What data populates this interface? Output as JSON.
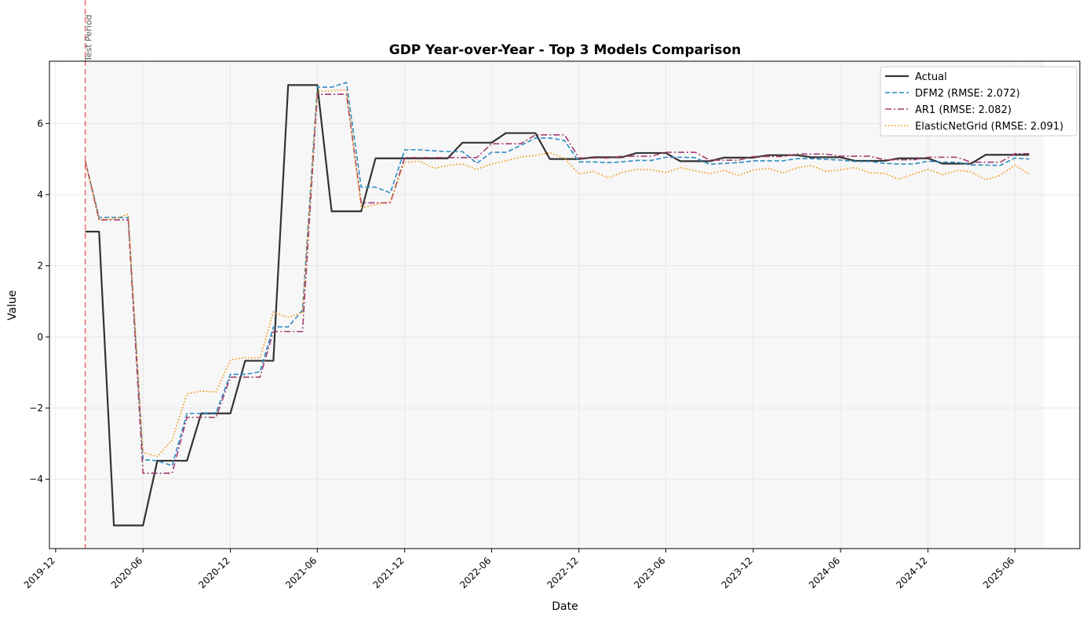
{
  "chart_data": {
    "type": "line",
    "title": "GDP Year-over-Year - Top 3 Models Comparison",
    "xlabel": "Date",
    "ylabel": "Value",
    "x_axis_type": "date",
    "xlim": [
      "2019-11-18",
      "2025-10-15"
    ],
    "ylim": [
      -5.95,
      7.75
    ],
    "x_ticks": [
      "2019-12",
      "2020-06",
      "2020-12",
      "2021-06",
      "2021-12",
      "2022-06",
      "2022-12",
      "2023-06",
      "2023-12",
      "2024-06",
      "2024-12",
      "2025-06"
    ],
    "y_ticks": [
      -4,
      -2,
      0,
      2,
      4,
      6
    ],
    "y_tick_labels": [
      "−4",
      "−2",
      "0",
      "2",
      "4",
      "6"
    ],
    "grid": true,
    "legend_position": "top-right",
    "test_period": {
      "start": "2020-02",
      "end": "2025-08",
      "label": "Test Period",
      "shade_color": "#f7f7f7",
      "line_color": "#f07070"
    },
    "x": [
      "2020-02",
      "2020-03",
      "2020-04",
      "2020-05",
      "2020-06",
      "2020-07",
      "2020-08",
      "2020-09",
      "2020-10",
      "2020-11",
      "2020-12",
      "2021-01",
      "2021-02",
      "2021-03",
      "2021-04",
      "2021-05",
      "2021-06",
      "2021-07",
      "2021-08",
      "2021-09",
      "2021-10",
      "2021-11",
      "2021-12",
      "2022-01",
      "2022-02",
      "2022-03",
      "2022-04",
      "2022-05",
      "2022-06",
      "2022-07",
      "2022-08",
      "2022-09",
      "2022-10",
      "2022-11",
      "2022-12",
      "2023-01",
      "2023-02",
      "2023-03",
      "2023-04",
      "2023-05",
      "2023-06",
      "2023-07",
      "2023-08",
      "2023-09",
      "2023-10",
      "2023-11",
      "2023-12",
      "2024-01",
      "2024-02",
      "2024-03",
      "2024-04",
      "2024-05",
      "2024-06",
      "2024-07",
      "2024-08",
      "2024-09",
      "2024-10",
      "2024-11",
      "2024-12",
      "2025-01",
      "2025-02",
      "2025-03",
      "2025-04",
      "2025-05",
      "2025-06",
      "2025-07"
    ],
    "series": [
      {
        "name": "Actual",
        "color": "#333333",
        "style": "solid",
        "values": [
          2.96,
          2.96,
          -5.3,
          -5.3,
          -5.3,
          -3.48,
          -3.48,
          -3.48,
          -2.15,
          -2.15,
          -2.15,
          -0.67,
          -0.67,
          -0.67,
          7.08,
          7.08,
          7.08,
          3.53,
          3.53,
          3.53,
          5.02,
          5.02,
          5.02,
          5.02,
          5.02,
          5.02,
          5.46,
          5.46,
          5.46,
          5.73,
          5.73,
          5.73,
          5.0,
          5.0,
          5.0,
          5.05,
          5.05,
          5.05,
          5.17,
          5.17,
          5.17,
          4.94,
          4.94,
          4.94,
          5.04,
          5.04,
          5.04,
          5.11,
          5.11,
          5.11,
          5.05,
          5.05,
          5.05,
          4.95,
          4.95,
          4.95,
          5.02,
          5.02,
          5.02,
          4.87,
          4.87,
          4.87,
          5.12,
          5.12,
          5.12,
          5.12
        ]
      },
      {
        "name": "DFM2 (RMSE: 2.072)",
        "color": "#2e8bc0",
        "style": "dashed",
        "values": [
          4.95,
          3.36,
          3.36,
          3.35,
          -3.45,
          -3.48,
          -3.62,
          -2.15,
          -2.15,
          -2.13,
          -1.05,
          -1.05,
          -0.98,
          0.28,
          0.28,
          0.75,
          7.02,
          7.02,
          7.15,
          4.21,
          4.21,
          4.05,
          5.26,
          5.26,
          5.23,
          5.21,
          5.21,
          4.88,
          5.19,
          5.19,
          5.38,
          5.59,
          5.59,
          5.52,
          4.92,
          4.92,
          4.9,
          4.92,
          4.96,
          4.96,
          5.05,
          5.05,
          5.04,
          4.85,
          4.88,
          4.9,
          4.95,
          4.95,
          4.95,
          5.01,
          5.01,
          4.99,
          4.97,
          4.93,
          4.93,
          4.88,
          4.86,
          4.86,
          4.94,
          4.91,
          4.91,
          4.83,
          4.83,
          4.82,
          5.03,
          5.0
        ]
      },
      {
        "name": "AR1 (RMSE: 2.082)",
        "color": "#a23b72",
        "style": "dashdot",
        "values": [
          4.95,
          3.29,
          3.29,
          3.29,
          -3.83,
          -3.83,
          -3.83,
          -2.26,
          -2.26,
          -2.26,
          -1.13,
          -1.13,
          -1.13,
          0.15,
          0.15,
          0.15,
          6.82,
          6.82,
          6.82,
          3.77,
          3.77,
          3.77,
          5.04,
          5.04,
          5.04,
          5.04,
          5.04,
          5.04,
          5.43,
          5.43,
          5.43,
          5.68,
          5.68,
          5.68,
          5.03,
          5.03,
          5.03,
          5.08,
          5.08,
          5.08,
          5.19,
          5.19,
          5.19,
          4.97,
          4.97,
          4.97,
          5.07,
          5.07,
          5.07,
          5.14,
          5.14,
          5.14,
          5.08,
          5.08,
          5.08,
          4.98,
          4.98,
          4.98,
          5.05,
          5.05,
          5.05,
          4.91,
          4.91,
          4.91,
          5.15,
          5.15
        ]
      },
      {
        "name": "ElasticNetGrid (RMSE: 2.091)",
        "color": "#f18f01",
        "style": "dotted",
        "values": [
          4.93,
          3.3,
          3.32,
          3.45,
          -3.25,
          -3.36,
          -2.9,
          -1.6,
          -1.52,
          -1.55,
          -0.65,
          -0.58,
          -0.6,
          0.7,
          0.55,
          0.68,
          6.9,
          6.92,
          6.95,
          3.62,
          3.72,
          3.8,
          4.91,
          4.94,
          4.74,
          4.82,
          4.86,
          4.71,
          4.86,
          4.95,
          5.06,
          5.1,
          5.18,
          5.02,
          4.58,
          4.65,
          4.47,
          4.62,
          4.71,
          4.7,
          4.62,
          4.76,
          4.67,
          4.59,
          4.68,
          4.54,
          4.69,
          4.74,
          4.61,
          4.75,
          4.82,
          4.65,
          4.7,
          4.76,
          4.61,
          4.6,
          4.43,
          4.58,
          4.71,
          4.56,
          4.68,
          4.64,
          4.42,
          4.54,
          4.83,
          4.58
        ]
      }
    ]
  }
}
